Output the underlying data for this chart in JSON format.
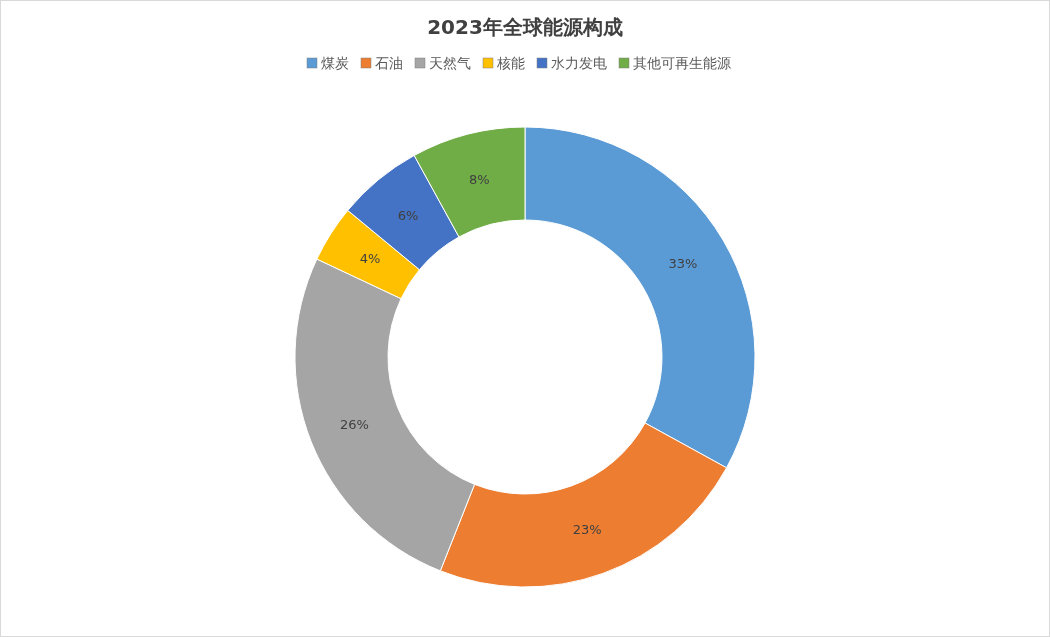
{
  "chart_data": {
    "type": "donut",
    "title": "2023年全球能源构成",
    "categories": [
      "煤炭",
      "石油",
      "天然气",
      "核能",
      "水力发电",
      "其他可再生能源"
    ],
    "values": [
      33,
      23,
      26,
      4,
      6,
      8
    ],
    "colors": [
      "#5b9bd5",
      "#ed7d31",
      "#a5a5a5",
      "#ffc000",
      "#4472c4",
      "#70ad47"
    ],
    "value_labels": [
      "33%",
      "23%",
      "26%",
      "4%",
      "6%",
      "8%"
    ],
    "legend": "top"
  }
}
